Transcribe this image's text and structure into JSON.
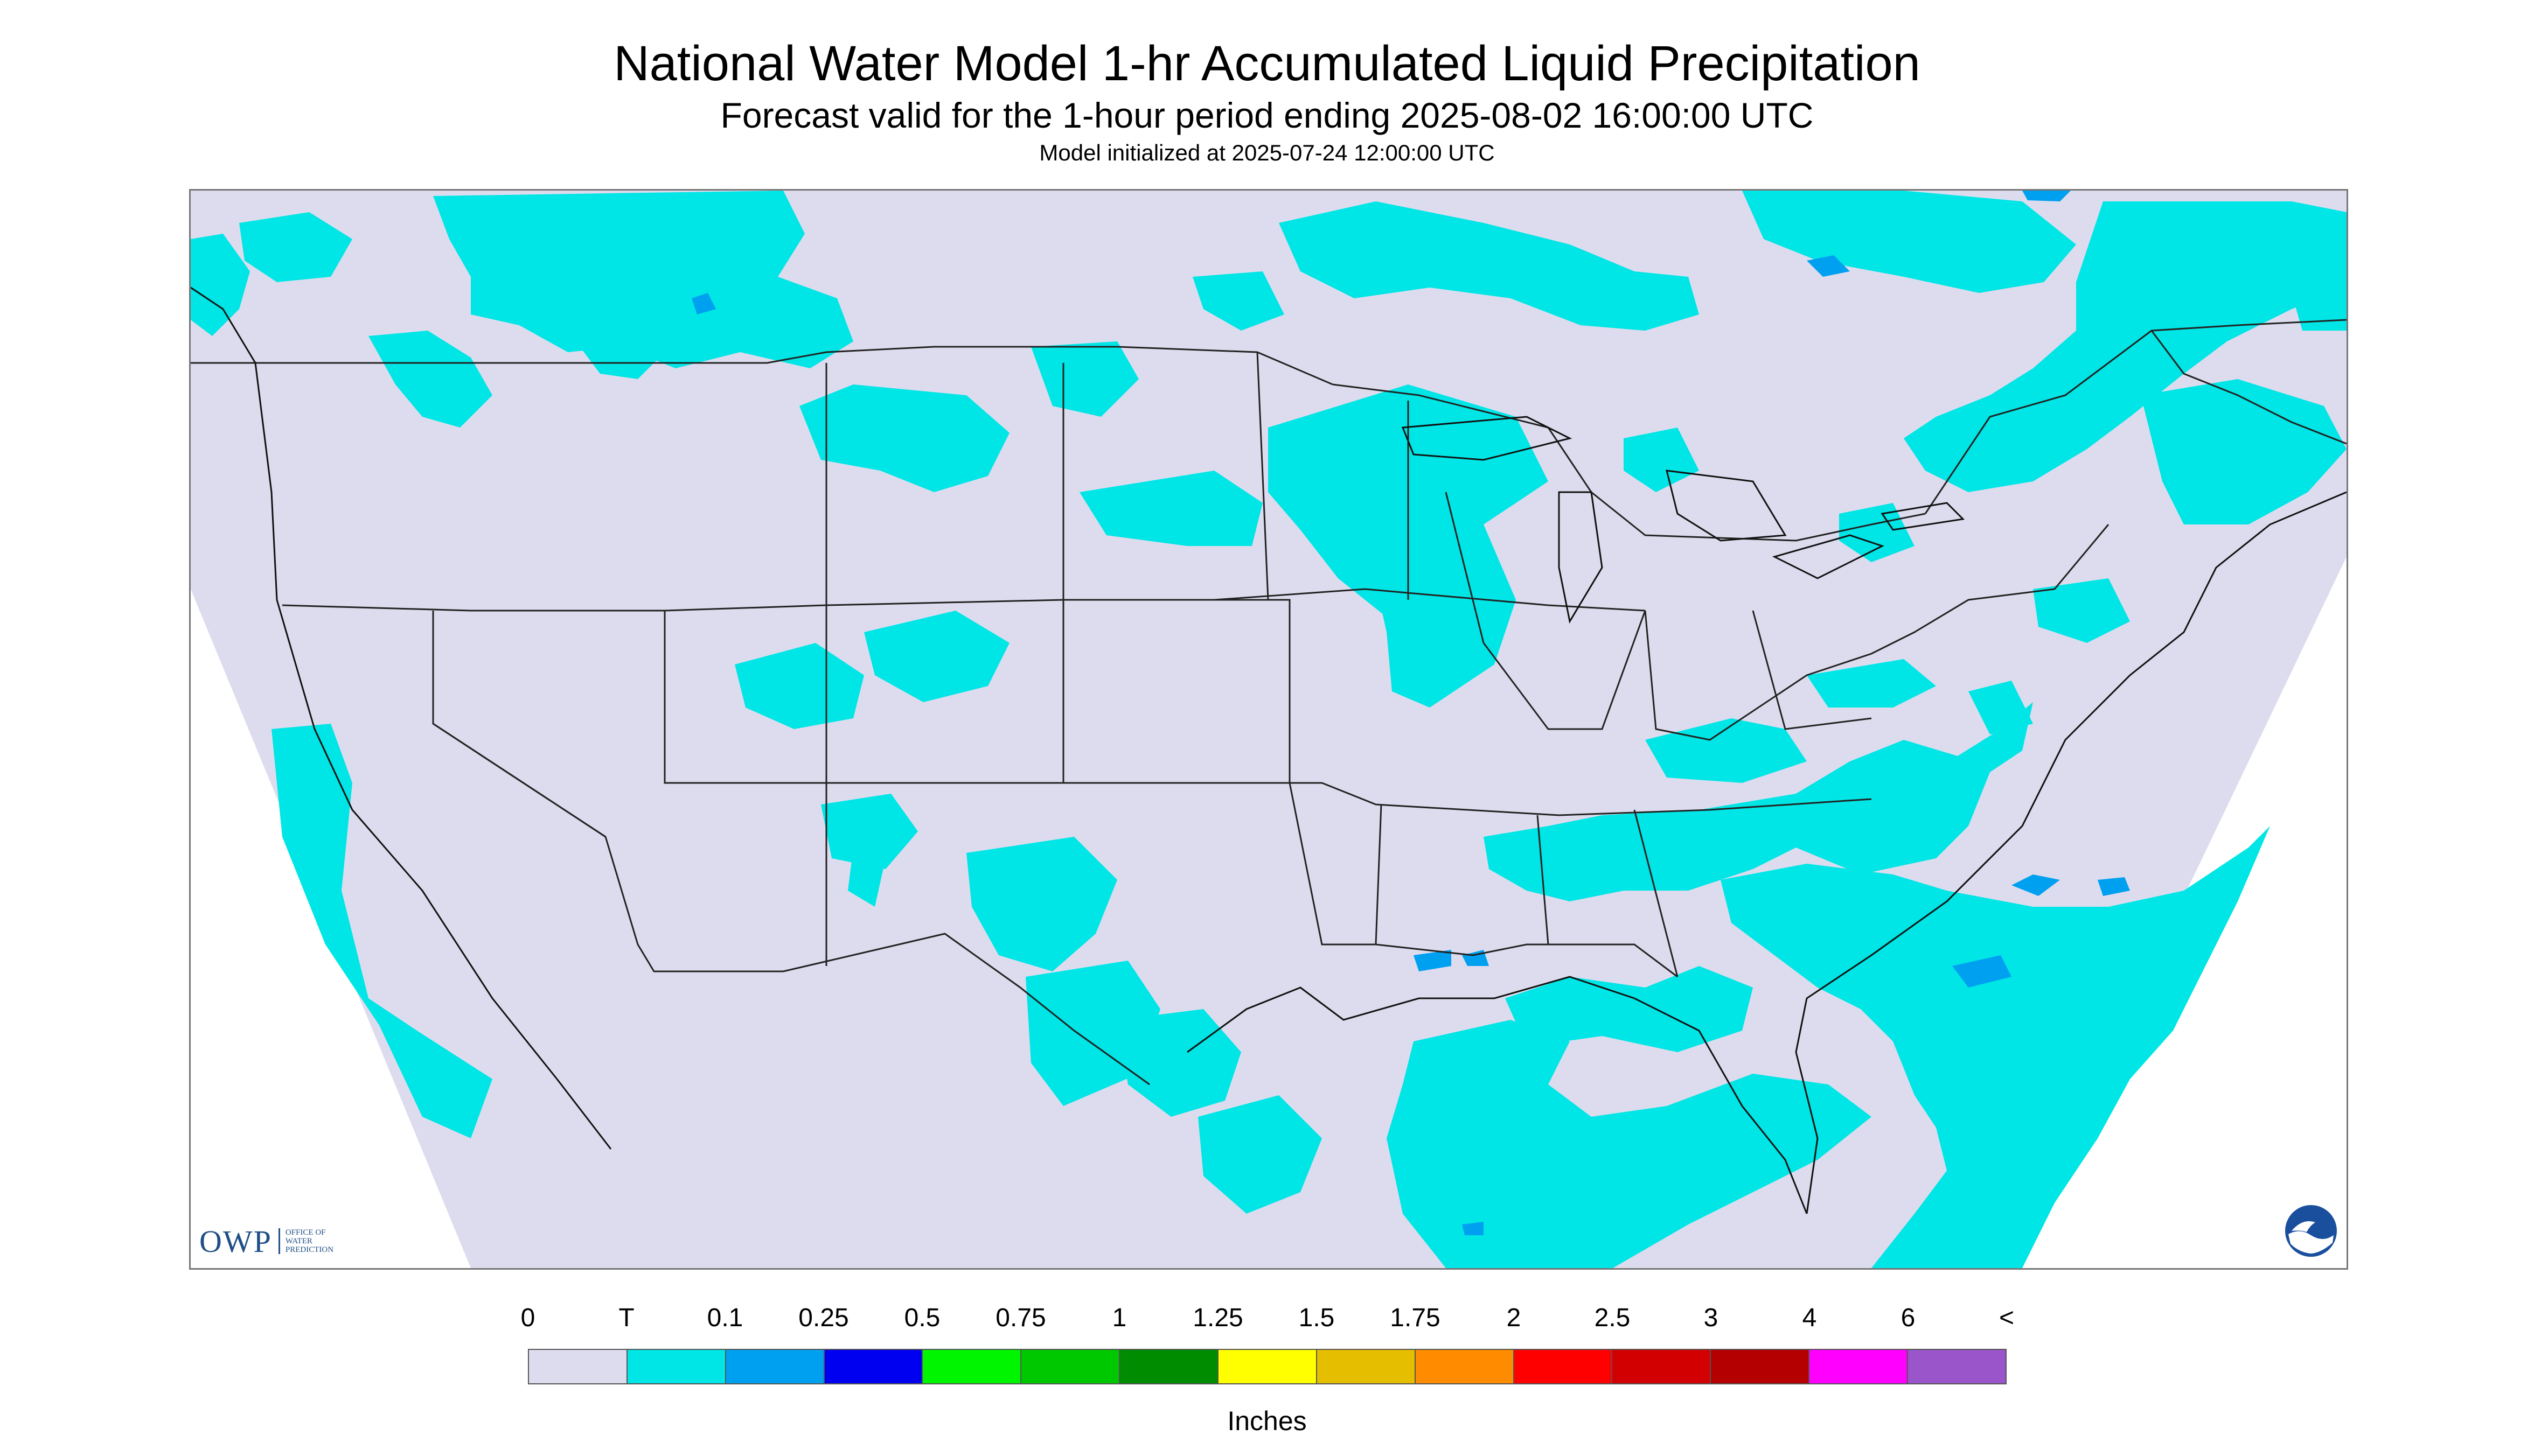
{
  "title": "National Water Model 1-hr Accumulated Liquid Precipitation",
  "subtitle": "Forecast valid for the 1-hour period ending 2025-08-02 16:00:00 UTC",
  "init_line": "Model initialized at 2025-07-24 12:00:00 UTC",
  "map": {
    "region": "Continental United States",
    "colors": {
      "no_precip": "#dcdcee",
      "trace": "#00e5e5",
      "light": "#00a0f0",
      "outside_domain": "#ffffff",
      "borders": "#222222"
    }
  },
  "logos": {
    "owp_text": "OWP",
    "owp_sub": [
      "OFFICE OF",
      "WATER",
      "PREDICTION"
    ],
    "noaa": "NOAA"
  },
  "legend": {
    "labels": [
      "0",
      "T",
      "0.1",
      "0.25",
      "0.5",
      "0.75",
      "1",
      "1.25",
      "1.5",
      "1.75",
      "2",
      "2.5",
      "3",
      "4",
      "6",
      "<"
    ],
    "colors": [
      "#dcdcee",
      "#00e5e5",
      "#00a0f0",
      "#0000f0",
      "#00f500",
      "#00c800",
      "#008c00",
      "#ffff00",
      "#e6be00",
      "#ff8c00",
      "#ff0000",
      "#d20000",
      "#b40000",
      "#ff00ff",
      "#9955c9"
    ],
    "units": "Inches"
  }
}
